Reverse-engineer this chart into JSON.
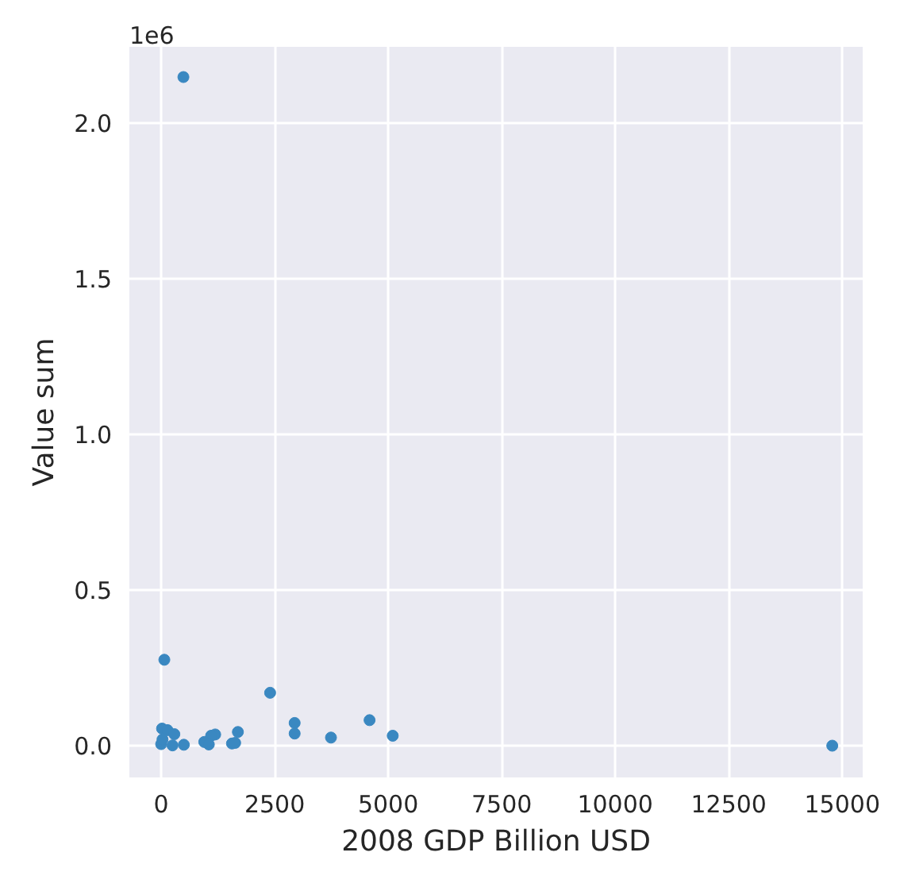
{
  "chart_data": {
    "type": "scatter",
    "xlabel": "2008 GDP Billion USD",
    "ylabel": "Value sum",
    "annotations": [
      "1e6"
    ],
    "xlim": [
      -700,
      15450
    ],
    "ylim": [
      -0.102,
      2.245
    ],
    "xticks": [
      0,
      2500,
      5000,
      7500,
      10000,
      12500,
      15000
    ],
    "yticks": [
      {
        "value": 0,
        "label": "0.0"
      },
      0.5,
      {
        "value": 1,
        "label": "1.0"
      },
      1.5,
      {
        "value": 2,
        "label": "2.0"
      }
    ],
    "grid": true,
    "marker": "circle",
    "series": [
      {
        "color": "#3a88c1",
        "x": [
          490,
          70,
          2400,
          2940,
          2940,
          3740,
          4590,
          5100,
          1690,
          1560,
          1630,
          1190,
          1100,
          950,
          1050,
          20,
          140,
          290,
          14780,
          0,
          250,
          500,
          30
        ],
        "values": [
          2.148,
          0.276,
          0.17,
          0.073,
          0.039,
          0.026,
          0.082,
          0.032,
          0.044,
          0.007,
          0.009,
          0.036,
          0.032,
          0.012,
          0.004,
          0.055,
          0.05,
          0.037,
          0,
          0.005,
          0.001,
          0.003,
          0.02
        ]
      }
    ]
  }
}
